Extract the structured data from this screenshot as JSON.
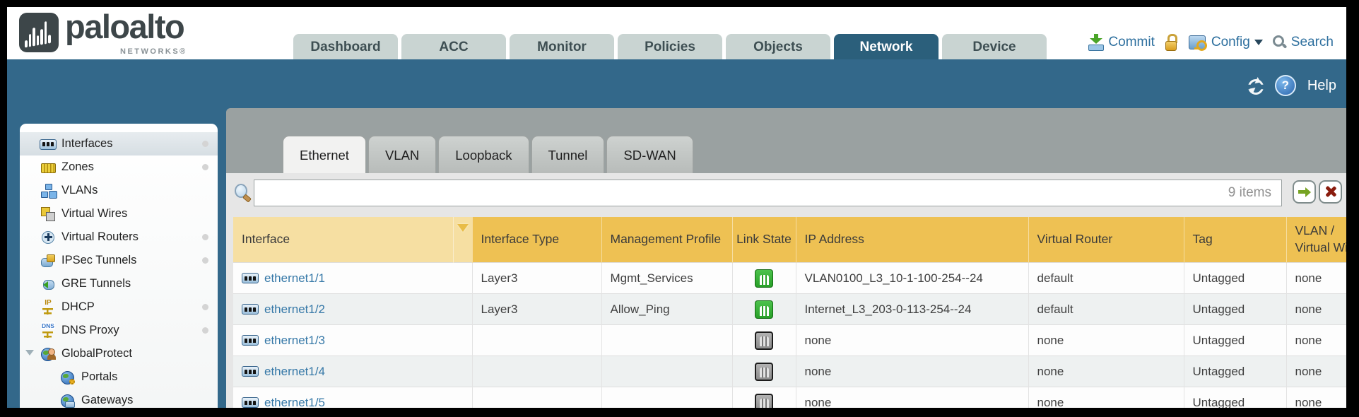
{
  "brand": {
    "name": "paloalto",
    "sub": "NETWORKS®"
  },
  "nav": {
    "tabs": [
      {
        "label": "Dashboard",
        "active": false
      },
      {
        "label": "ACC",
        "active": false
      },
      {
        "label": "Monitor",
        "active": false
      },
      {
        "label": "Policies",
        "active": false
      },
      {
        "label": "Objects",
        "active": false
      },
      {
        "label": "Network",
        "active": true
      },
      {
        "label": "Device",
        "active": false
      }
    ],
    "commit_label": "Commit",
    "config_label": "Config",
    "search_label": "Search"
  },
  "utility_bar": {
    "help_label": "Help"
  },
  "sidebar": {
    "items": [
      {
        "label": "Interfaces",
        "icon": "interfaces-icon",
        "selected": true,
        "dot": true,
        "indent": false,
        "expander": false
      },
      {
        "label": "Zones",
        "icon": "zones-icon",
        "selected": false,
        "dot": true,
        "indent": false,
        "expander": false
      },
      {
        "label": "VLANs",
        "icon": "vlans-icon",
        "selected": false,
        "dot": false,
        "indent": false,
        "expander": false
      },
      {
        "label": "Virtual Wires",
        "icon": "virtual-wires-icon",
        "selected": false,
        "dot": false,
        "indent": false,
        "expander": false
      },
      {
        "label": "Virtual Routers",
        "icon": "virtual-routers-icon",
        "selected": false,
        "dot": true,
        "indent": false,
        "expander": false
      },
      {
        "label": "IPSec Tunnels",
        "icon": "ipsec-tunnels-icon",
        "selected": false,
        "dot": true,
        "indent": false,
        "expander": false
      },
      {
        "label": "GRE Tunnels",
        "icon": "gre-tunnels-icon",
        "selected": false,
        "dot": false,
        "indent": false,
        "expander": false
      },
      {
        "label": "DHCP",
        "icon": "dhcp-icon",
        "selected": false,
        "dot": true,
        "indent": false,
        "expander": false,
        "glyph": "IP"
      },
      {
        "label": "DNS Proxy",
        "icon": "dns-proxy-icon",
        "selected": false,
        "dot": true,
        "indent": false,
        "expander": false,
        "glyph": "DNS"
      },
      {
        "label": "GlobalProtect",
        "icon": "globalprotect-icon",
        "selected": false,
        "dot": false,
        "indent": false,
        "expander": true
      },
      {
        "label": "Portals",
        "icon": "portals-icon",
        "selected": false,
        "dot": false,
        "indent": true,
        "expander": false
      },
      {
        "label": "Gateways",
        "icon": "gateways-icon",
        "selected": false,
        "dot": false,
        "indent": true,
        "expander": false
      }
    ]
  },
  "content": {
    "tabs": [
      {
        "label": "Ethernet",
        "active": true
      },
      {
        "label": "VLAN",
        "active": false
      },
      {
        "label": "Loopback",
        "active": false
      },
      {
        "label": "Tunnel",
        "active": false
      },
      {
        "label": "SD-WAN",
        "active": false
      }
    ],
    "search": {
      "value": "",
      "count": "9 items"
    },
    "table": {
      "columns": [
        "Interface",
        "Interface Type",
        "Management Profile",
        "Link State",
        "IP Address",
        "Virtual Router",
        "Tag",
        "VLAN / Virtual Wire"
      ],
      "rows": [
        {
          "interface": "ethernet1/1",
          "type": "Layer3",
          "profile": "Mgmt_Services",
          "link": "up",
          "ip": "VLAN0100_L3_10-1-100-254--24",
          "router": "default",
          "tag": "Untagged",
          "vlan": "none"
        },
        {
          "interface": "ethernet1/2",
          "type": "Layer3",
          "profile": "Allow_Ping",
          "link": "up",
          "ip": "Internet_L3_203-0-113-254--24",
          "router": "default",
          "tag": "Untagged",
          "vlan": "none"
        },
        {
          "interface": "ethernet1/3",
          "type": "",
          "profile": "",
          "link": "down",
          "ip": "none",
          "router": "none",
          "tag": "Untagged",
          "vlan": "none"
        },
        {
          "interface": "ethernet1/4",
          "type": "",
          "profile": "",
          "link": "down",
          "ip": "none",
          "router": "none",
          "tag": "Untagged",
          "vlan": "none"
        },
        {
          "interface": "ethernet1/5",
          "type": "",
          "profile": "",
          "link": "down",
          "ip": "none",
          "router": "none",
          "tag": "Untagged",
          "vlan": "none"
        }
      ]
    }
  },
  "colors": {
    "teal": "#33688a",
    "nav_tab_active": "#2b5f7b",
    "nav_tab": "#c9d4d2",
    "header_gold": "#eec153",
    "header_gold_sorted": "#f6dfa2",
    "link_blue": "#3779a8",
    "action_blue": "#2d6f9e",
    "link_up_green": "#35b335",
    "link_down_gray": "#969696"
  }
}
